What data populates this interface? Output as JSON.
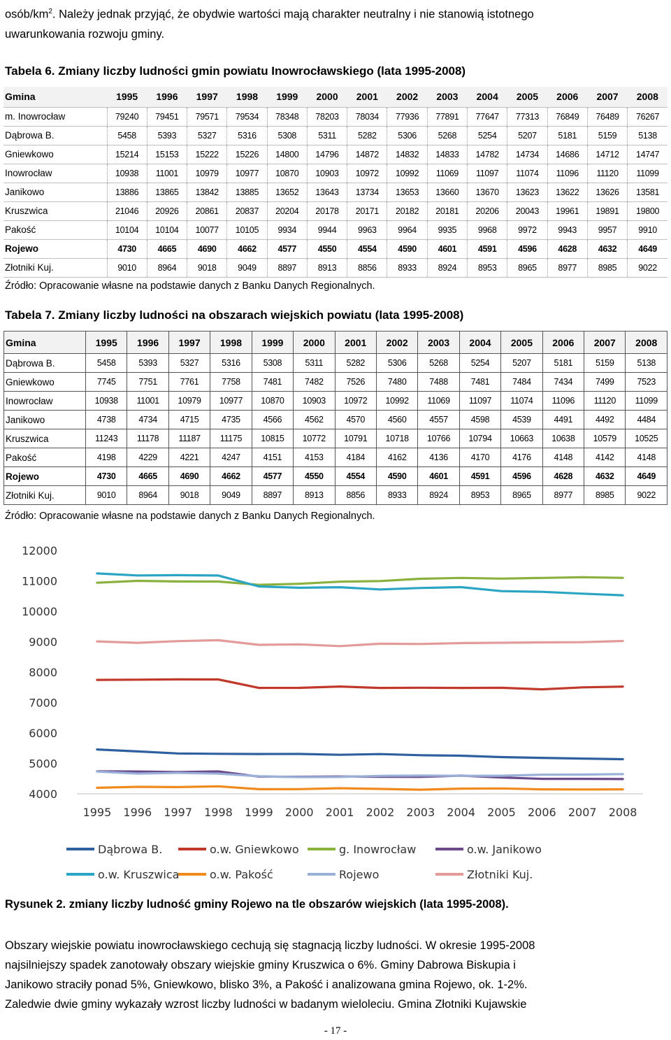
{
  "intro": {
    "line1_before": "osób/km",
    "line1_sup": "2",
    "line1_after": ". Należy jednak przyjąć, że obydwie wartości mają charakter neutralny i nie stanowią istotnego",
    "line2": "uwarunkowania rozwoju gminy."
  },
  "table6": {
    "title": "Tabela 6. Zmiany liczby ludności gmin powiatu Inowrocławskiego (lata 1995-2008)",
    "first_header": "Gmina",
    "years": [
      "1995",
      "1996",
      "1997",
      "1998",
      "1999",
      "2000",
      "2001",
      "2002",
      "2003",
      "2004",
      "2005",
      "2006",
      "2007",
      "2008"
    ],
    "rows": [
      {
        "name": "m. Inowrocław",
        "values": [
          "79240",
          "79451",
          "79571",
          "79534",
          "78348",
          "78203",
          "78034",
          "77936",
          "77891",
          "77647",
          "77313",
          "76849",
          "76489",
          "76267"
        ]
      },
      {
        "name": "Dąbrowa B.",
        "values": [
          "5458",
          "5393",
          "5327",
          "5316",
          "5308",
          "5311",
          "5282",
          "5306",
          "5268",
          "5254",
          "5207",
          "5181",
          "5159",
          "5138"
        ]
      },
      {
        "name": "Gniewkowo",
        "values": [
          "15214",
          "15153",
          "15222",
          "15226",
          "14800",
          "14796",
          "14872",
          "14832",
          "14833",
          "14782",
          "14734",
          "14686",
          "14712",
          "14747"
        ]
      },
      {
        "name": "Inowrocław",
        "values": [
          "10938",
          "11001",
          "10979",
          "10977",
          "10870",
          "10903",
          "10972",
          "10992",
          "11069",
          "11097",
          "11074",
          "11096",
          "11120",
          "11099"
        ]
      },
      {
        "name": "Janikowo",
        "values": [
          "13886",
          "13865",
          "13842",
          "13885",
          "13652",
          "13643",
          "13734",
          "13653",
          "13660",
          "13670",
          "13623",
          "13622",
          "13626",
          "13581"
        ]
      },
      {
        "name": "Kruszwica",
        "values": [
          "21046",
          "20926",
          "20861",
          "20837",
          "20204",
          "20178",
          "20171",
          "20182",
          "20181",
          "20206",
          "20043",
          "19961",
          "19891",
          "19800"
        ]
      },
      {
        "name": "Pakość",
        "values": [
          "10104",
          "10104",
          "10077",
          "10105",
          "9934",
          "9944",
          "9963",
          "9964",
          "9935",
          "9968",
          "9972",
          "9943",
          "9957",
          "9910"
        ]
      },
      {
        "name": "Rojewo",
        "bold": true,
        "values": [
          "4730",
          "4665",
          "4690",
          "4662",
          "4577",
          "4550",
          "4554",
          "4590",
          "4601",
          "4591",
          "4596",
          "4628",
          "4632",
          "4649"
        ]
      },
      {
        "name": "Złotniki Kuj.",
        "values": [
          "9010",
          "8964",
          "9018",
          "9049",
          "8897",
          "8913",
          "8856",
          "8933",
          "8924",
          "8953",
          "8965",
          "8977",
          "8985",
          "9022"
        ]
      }
    ],
    "source": "Źródło: Opracowanie własne na podstawie danych z Banku Danych Regionalnych."
  },
  "table7": {
    "title": "Tabela 7. Zmiany liczby ludności na obszarach wiejskich powiatu (lata 1995-2008)",
    "first_header": "Gmina",
    "years": [
      "1995",
      "1996",
      "1997",
      "1998",
      "1999",
      "2000",
      "2001",
      "2002",
      "2003",
      "2004",
      "2005",
      "2006",
      "2007",
      "2008"
    ],
    "rows": [
      {
        "name": "Dąbrowa B.",
        "values": [
          "5458",
          "5393",
          "5327",
          "5316",
          "5308",
          "5311",
          "5282",
          "5306",
          "5268",
          "5254",
          "5207",
          "5181",
          "5159",
          "5138"
        ]
      },
      {
        "name": "Gniewkowo",
        "values": [
          "7745",
          "7751",
          "7761",
          "7758",
          "7481",
          "7482",
          "7526",
          "7480",
          "7488",
          "7481",
          "7484",
          "7434",
          "7499",
          "7523"
        ]
      },
      {
        "name": "Inowrocław",
        "values": [
          "10938",
          "11001",
          "10979",
          "10977",
          "10870",
          "10903",
          "10972",
          "10992",
          "11069",
          "11097",
          "11074",
          "11096",
          "11120",
          "11099"
        ]
      },
      {
        "name": "Janikowo",
        "values": [
          "4738",
          "4734",
          "4715",
          "4735",
          "4566",
          "4562",
          "4570",
          "4560",
          "4557",
          "4598",
          "4539",
          "4491",
          "4492",
          "4484"
        ]
      },
      {
        "name": "Kruszwica",
        "values": [
          "11243",
          "11178",
          "11187",
          "11175",
          "10815",
          "10772",
          "10791",
          "10718",
          "10766",
          "10794",
          "10663",
          "10638",
          "10579",
          "10525"
        ]
      },
      {
        "name": "Pakość",
        "values": [
          "4198",
          "4229",
          "4221",
          "4247",
          "4151",
          "4153",
          "4184",
          "4162",
          "4136",
          "4170",
          "4176",
          "4148",
          "4142",
          "4148"
        ]
      },
      {
        "name": "Rojewo",
        "bold": true,
        "values": [
          "4730",
          "4665",
          "4690",
          "4662",
          "4577",
          "4550",
          "4554",
          "4590",
          "4601",
          "4591",
          "4596",
          "4628",
          "4632",
          "4649"
        ]
      },
      {
        "name": "Złotniki Kuj.",
        "values": [
          "9010",
          "8964",
          "9018",
          "9049",
          "8897",
          "8913",
          "8856",
          "8933",
          "8924",
          "8953",
          "8965",
          "8977",
          "8985",
          "9022"
        ]
      }
    ],
    "source": "Źródło: Opracowanie własne na podstawie danych z Banku Danych Regionalnych."
  },
  "chart_data": {
    "type": "line",
    "title": "",
    "xlabel": "",
    "ylabel": "",
    "x": [
      "1995",
      "1996",
      "1997",
      "1998",
      "1999",
      "2000",
      "2001",
      "2002",
      "2003",
      "2004",
      "2005",
      "2006",
      "2007",
      "2008"
    ],
    "ylim": [
      4000,
      12000
    ],
    "yticks": [
      "4000",
      "5000",
      "6000",
      "7000",
      "8000",
      "9000",
      "10000",
      "11000",
      "12000"
    ],
    "grid": false,
    "legend_position": "bottom",
    "series": [
      {
        "name": "Dąbrowa B.",
        "color": "#2e5f9e",
        "values": [
          5458,
          5393,
          5327,
          5316,
          5308,
          5311,
          5282,
          5306,
          5268,
          5254,
          5207,
          5181,
          5159,
          5138
        ]
      },
      {
        "name": "o.w. Gniewkowo",
        "color": "#c0392b",
        "values": [
          7745,
          7751,
          7761,
          7758,
          7481,
          7482,
          7526,
          7480,
          7488,
          7481,
          7484,
          7434,
          7499,
          7523
        ]
      },
      {
        "name": "g. Inowrocław",
        "color": "#8ab03e",
        "values": [
          10938,
          11001,
          10979,
          10977,
          10870,
          10903,
          10972,
          10992,
          11069,
          11097,
          11074,
          11096,
          11120,
          11099
        ]
      },
      {
        "name": "o.w. Janikowo",
        "color": "#6b4a8c",
        "values": [
          4738,
          4734,
          4715,
          4735,
          4566,
          4562,
          4570,
          4560,
          4557,
          4598,
          4539,
          4491,
          4492,
          4484
        ]
      },
      {
        "name": "o.w. Kruszwica",
        "color": "#2aa5c4",
        "values": [
          11243,
          11178,
          11187,
          11175,
          10815,
          10772,
          10791,
          10718,
          10766,
          10794,
          10663,
          10638,
          10579,
          10525
        ]
      },
      {
        "name": "o.w. Pakość",
        "color": "#f08a1c",
        "values": [
          4198,
          4229,
          4221,
          4247,
          4151,
          4153,
          4184,
          4162,
          4136,
          4170,
          4176,
          4148,
          4142,
          4148
        ]
      },
      {
        "name": "Rojewo",
        "color": "#9ab0d8",
        "values": [
          4730,
          4665,
          4690,
          4662,
          4577,
          4550,
          4554,
          4590,
          4601,
          4591,
          4596,
          4628,
          4632,
          4649
        ]
      },
      {
        "name": "Złotniki Kuj.",
        "color": "#e39b9a",
        "values": [
          9010,
          8964,
          9018,
          9049,
          8897,
          8913,
          8856,
          8933,
          8924,
          8953,
          8965,
          8977,
          8985,
          9022
        ]
      }
    ]
  },
  "figure_caption": "Rysunek 2. zmiany liczby ludność gminy Rojewo na tle obszarów wiejskich (lata 1995-2008).",
  "body_text": {
    "line1": "Obszary wiejskie powiatu inowrocławskiego cechują się stagnacją liczby ludności. W okresie 1995-2008",
    "line2": "najsilniejszy spadek zanotowały obszary wiejskie gminy Kruszwica o 6%. Gminy Dabrowa Biskupia i",
    "line3": "Janikowo straciły ponad 5%, Gniewkowo, blisko 3%, a Pakość i analizowana gmina Rojewo, ok. 1-2%.",
    "line4": "Zaledwie dwie gminy wykazały wzrost liczby ludności w badanym wieloleciu. Gmina Złotniki Kujawskie"
  },
  "page_number": "- 17 -"
}
